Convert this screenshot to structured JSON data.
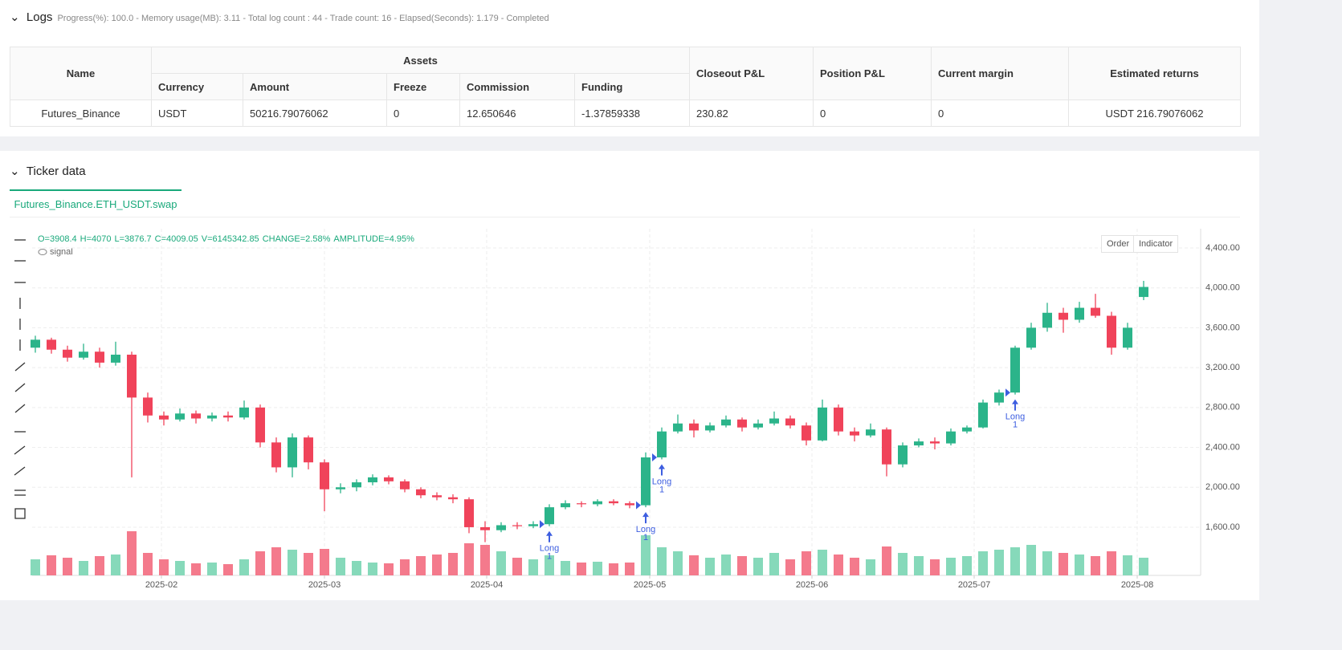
{
  "logs": {
    "title": "Logs",
    "status": "Progress(%): 100.0  - Memory usage(MB): 3.11 - Total log count : 44 - Trade count:  16 - Elapsed(Seconds): 1.179 - Completed"
  },
  "table": {
    "group": "Assets",
    "headers": [
      "Name",
      "Currency",
      "Amount",
      "Freeze",
      "Commission",
      "Funding",
      "Closeout P&L",
      "Position P&L",
      "Current margin",
      "Estimated returns"
    ],
    "rows": [
      [
        "Futures_Binance",
        "USDT",
        "50216.79076062",
        "0",
        "12.650646",
        "-1.37859338",
        "230.82",
        "0",
        "0",
        "USDT 216.79076062"
      ]
    ]
  },
  "ticker": {
    "title": "Ticker data",
    "tab": "Futures_Binance.ETH_USDT.swap",
    "buttons": [
      "Order",
      "Indicator"
    ]
  },
  "chart_data": {
    "type": "candlestick",
    "info": [
      "O=3908.4",
      "H=4070",
      "L=3876.7",
      "C=4009.05",
      "V=6145342.85",
      "CHANGE=2.58%",
      "AMPLITUDE=4.95%"
    ],
    "indicator": "signal",
    "up_color": "#2bb48a",
    "down_color": "#f0435a",
    "volume_up_color": "#86d9ba",
    "volume_down_color": "#f47a8c",
    "grid": true,
    "xlim": [
      -0.2,
      72.55
    ],
    "ylim": [
      1117,
      4593
    ],
    "xticks": [
      {
        "value": 7.85,
        "label": "2025-02"
      },
      {
        "value": 18.0,
        "label": "2025-03"
      },
      {
        "value": 28.1,
        "label": "2025-04"
      },
      {
        "value": 38.25,
        "label": "2025-05"
      },
      {
        "value": 48.35,
        "label": "2025-06"
      },
      {
        "value": 58.45,
        "label": "2025-07"
      },
      {
        "value": 68.6,
        "label": "2025-08"
      }
    ],
    "yticks": [
      {
        "value": 1600,
        "label": "1,600.00"
      },
      {
        "value": 2000,
        "label": "2,000.00"
      },
      {
        "value": 2400,
        "label": "2,400.00"
      },
      {
        "value": 2800,
        "label": "2,800.00"
      },
      {
        "value": 3200,
        "label": "3,200.00"
      },
      {
        "value": 3600,
        "label": "3,600.00"
      },
      {
        "value": 4000,
        "label": "4,000.00"
      },
      {
        "value": 4400,
        "label": "4,400.00"
      }
    ],
    "candles": [
      [
        3400,
        3520,
        3350,
        3480
      ],
      [
        3480,
        3500,
        3340,
        3380
      ],
      [
        3380,
        3420,
        3260,
        3300
      ],
      [
        3300,
        3440,
        3280,
        3360
      ],
      [
        3360,
        3400,
        3200,
        3250
      ],
      [
        3250,
        3460,
        3220,
        3330
      ],
      [
        3330,
        3360,
        2100,
        2900
      ],
      [
        2900,
        2950,
        2650,
        2720
      ],
      [
        2720,
        2760,
        2620,
        2680
      ],
      [
        2680,
        2790,
        2660,
        2740
      ],
      [
        2740,
        2770,
        2640,
        2690
      ],
      [
        2690,
        2750,
        2660,
        2720
      ],
      [
        2720,
        2760,
        2660,
        2700
      ],
      [
        2700,
        2870,
        2680,
        2800
      ],
      [
        2800,
        2830,
        2400,
        2450
      ],
      [
        2450,
        2500,
        2150,
        2200
      ],
      [
        2200,
        2540,
        2100,
        2500
      ],
      [
        2500,
        2520,
        2180,
        2250
      ],
      [
        2250,
        2280,
        1760,
        1980
      ],
      [
        1980,
        2040,
        1940,
        2000
      ],
      [
        2000,
        2080,
        1960,
        2050
      ],
      [
        2050,
        2130,
        2020,
        2100
      ],
      [
        2100,
        2120,
        2030,
        2060
      ],
      [
        2060,
        2080,
        1950,
        1980
      ],
      [
        1980,
        2000,
        1890,
        1920
      ],
      [
        1920,
        1950,
        1870,
        1900
      ],
      [
        1900,
        1930,
        1840,
        1880
      ],
      [
        1880,
        1900,
        1540,
        1600
      ],
      [
        1600,
        1660,
        1450,
        1570
      ],
      [
        1570,
        1650,
        1550,
        1620
      ],
      [
        1620,
        1650,
        1580,
        1610
      ],
      [
        1610,
        1660,
        1590,
        1630
      ],
      [
        1630,
        1830,
        1610,
        1800
      ],
      [
        1800,
        1870,
        1780,
        1840
      ],
      [
        1840,
        1860,
        1800,
        1830
      ],
      [
        1830,
        1880,
        1810,
        1860
      ],
      [
        1860,
        1880,
        1820,
        1840
      ],
      [
        1840,
        1860,
        1790,
        1820
      ],
      [
        1820,
        2350,
        1800,
        2300
      ],
      [
        2300,
        2600,
        2280,
        2560
      ],
      [
        2560,
        2730,
        2540,
        2640
      ],
      [
        2640,
        2680,
        2500,
        2570
      ],
      [
        2570,
        2650,
        2550,
        2620
      ],
      [
        2620,
        2720,
        2600,
        2680
      ],
      [
        2680,
        2700,
        2560,
        2600
      ],
      [
        2600,
        2680,
        2580,
        2640
      ],
      [
        2640,
        2760,
        2620,
        2690
      ],
      [
        2690,
        2720,
        2590,
        2620
      ],
      [
        2620,
        2650,
        2420,
        2470
      ],
      [
        2470,
        2880,
        2460,
        2800
      ],
      [
        2800,
        2830,
        2520,
        2560
      ],
      [
        2560,
        2600,
        2460,
        2520
      ],
      [
        2520,
        2640,
        2500,
        2580
      ],
      [
        2580,
        2600,
        2110,
        2230
      ],
      [
        2230,
        2450,
        2200,
        2420
      ],
      [
        2420,
        2490,
        2400,
        2460
      ],
      [
        2460,
        2500,
        2380,
        2440
      ],
      [
        2440,
        2590,
        2420,
        2560
      ],
      [
        2560,
        2620,
        2540,
        2600
      ],
      [
        2600,
        2880,
        2590,
        2850
      ],
      [
        2850,
        2980,
        2820,
        2950
      ],
      [
        2950,
        3420,
        2930,
        3400
      ],
      [
        3400,
        3650,
        3380,
        3600
      ],
      [
        3600,
        3850,
        3560,
        3750
      ],
      [
        3750,
        3800,
        3550,
        3680
      ],
      [
        3680,
        3860,
        3650,
        3800
      ],
      [
        3800,
        3940,
        3700,
        3720
      ],
      [
        3720,
        3760,
        3330,
        3400
      ],
      [
        3400,
        3650,
        3380,
        3600
      ],
      [
        3908.4,
        4070,
        3876.7,
        4009.05
      ]
    ],
    "volume": [
      20,
      25,
      22,
      18,
      24,
      26,
      55,
      28,
      20,
      18,
      15,
      16,
      14,
      20,
      30,
      35,
      32,
      28,
      33,
      22,
      18,
      16,
      15,
      20,
      24,
      26,
      28,
      40,
      38,
      30,
      22,
      20,
      25,
      18,
      16,
      17,
      15,
      16,
      50,
      35,
      30,
      25,
      22,
      26,
      24,
      22,
      28,
      20,
      30,
      32,
      26,
      22,
      20,
      36,
      28,
      24,
      20,
      22,
      24,
      30,
      32,
      35,
      38,
      30,
      28,
      26,
      24,
      30,
      25,
      22
    ],
    "signals": [
      {
        "candle": 32,
        "label": "Long",
        "qty": "1"
      },
      {
        "candle": 38,
        "label": "Long",
        "qty": "1"
      },
      {
        "candle": 39,
        "label": "Long",
        "qty": "1"
      },
      {
        "candle": 61,
        "label": "Long",
        "qty": "1"
      }
    ]
  }
}
